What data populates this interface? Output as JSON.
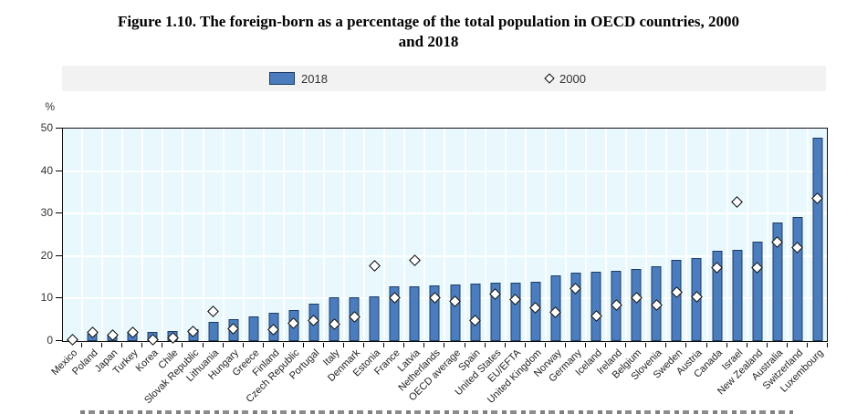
{
  "figure": {
    "title_line1": "Figure 1.10. The foreign-born as a percentage of the total population in OECD countries, 2000",
    "title_line2": "and 2018",
    "y_unit_label": "%"
  },
  "colors": {
    "bar_fill": "#4b7dbe",
    "bar_border": "#1e3c64",
    "plot_background": "#e9f8fd",
    "gridline": "#ffffff",
    "legend_background": "#f2f2f2",
    "marker_fill": "#ffffff",
    "marker_border": "#000000"
  },
  "chart_data": {
    "type": "bar",
    "title": "Figure 1.10. The foreign-born as a percentage of the total population in OECD countries, 2000 and 2018",
    "xlabel": "",
    "ylabel": "%",
    "ylim": [
      0,
      50
    ],
    "yticks": [
      0,
      10,
      20,
      30,
      40,
      50
    ],
    "grid": true,
    "legend_position": "top",
    "categories": [
      "Mexico",
      "Poland",
      "Japan",
      "Turkey",
      "Korea",
      "Chile",
      "Slovak Republic",
      "Lithuania",
      "Hungary",
      "Greece",
      "Finland",
      "Czech Republic",
      "Portugal",
      "Italy",
      "Denmark",
      "Estonia",
      "France",
      "Latvia",
      "Netherlands",
      "OECD average",
      "Spain",
      "United States",
      "EU/EFTA",
      "United Kingdom",
      "Norway",
      "Germany",
      "Iceland",
      "Ireland",
      "Belgium",
      "Slovenia",
      "Sweden",
      "Austria",
      "Canada",
      "Israel",
      "New Zealand",
      "Australia",
      "Switzerland",
      "Luxembourg"
    ],
    "series": [
      {
        "name": "2018",
        "type": "bar",
        "values": [
          0.5,
          1.7,
          1.6,
          1.9,
          2.2,
          2.4,
          2.9,
          4.5,
          5.2,
          5.8,
          6.6,
          7.2,
          8.8,
          10.2,
          10.4,
          10.6,
          12.8,
          12.8,
          13.0,
          13.3,
          13.5,
          13.7,
          13.8,
          14.0,
          15.5,
          16.0,
          16.4,
          16.6,
          16.9,
          17.6,
          19.1,
          19.5,
          21.3,
          21.5,
          23.5,
          27.8,
          29.2,
          47.9
        ]
      },
      {
        "name": "2000",
        "type": "scatter",
        "marker": "diamond",
        "values": [
          0.4,
          2.1,
          1.3,
          2.0,
          0.3,
          0.8,
          2.3,
          7.0,
          2.8,
          null,
          2.6,
          4.1,
          4.9,
          3.9,
          5.6,
          17.8,
          10.2,
          18.9,
          10.1,
          9.3,
          4.8,
          11.0,
          9.8,
          7.9,
          6.7,
          12.4,
          5.9,
          8.5,
          10.3,
          8.5,
          11.5,
          10.4,
          17.3,
          32.8,
          17.3,
          23.3,
          22.1,
          33.5
        ]
      }
    ]
  }
}
